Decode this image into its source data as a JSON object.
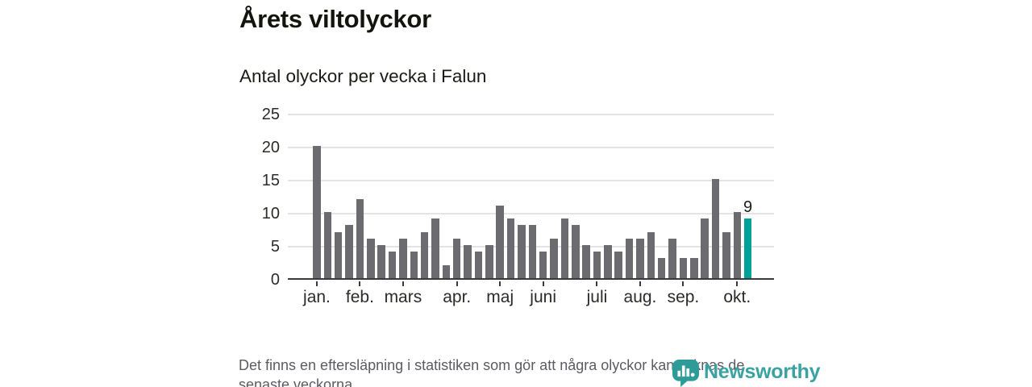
{
  "header": {
    "title": "Årets viltolyckor",
    "subtitle": "Antal olyckor per vecka i Falun"
  },
  "chart_data": {
    "type": "bar",
    "title": "Årets viltolyckor",
    "subtitle": "Antal olyckor per vecka i Falun",
    "x_unit": "vecka (week number)",
    "weeks": [
      1,
      2,
      3,
      4,
      5,
      6,
      7,
      8,
      9,
      10,
      11,
      12,
      13,
      14,
      15,
      16,
      17,
      18,
      19,
      20,
      21,
      22,
      23,
      24,
      25,
      26,
      27,
      28,
      29,
      30,
      31,
      32,
      33,
      34,
      35,
      36,
      37,
      38,
      39,
      40,
      41
    ],
    "values": [
      20,
      10,
      7,
      8,
      12,
      6,
      5,
      4,
      6,
      4,
      7,
      9,
      2,
      6,
      5,
      4,
      5,
      11,
      9,
      8,
      8,
      4,
      6,
      9,
      8,
      5,
      4,
      5,
      4,
      6,
      6,
      7,
      3,
      6,
      3,
      3,
      9,
      15,
      7,
      10,
      9
    ],
    "last_bar_highlighted": true,
    "last_value_label": "9",
    "ylim": [
      0,
      25
    ],
    "yticks": [
      0,
      5,
      10,
      15,
      20,
      25
    ],
    "grid": true,
    "month_ticks": [
      {
        "label": "jan.",
        "week": 1
      },
      {
        "label": "feb.",
        "week": 5
      },
      {
        "label": "mars",
        "week": 9
      },
      {
        "label": "apr.",
        "week": 14
      },
      {
        "label": "maj",
        "week": 18
      },
      {
        "label": "juni",
        "week": 22
      },
      {
        "label": "juli",
        "week": 27
      },
      {
        "label": "aug.",
        "week": 31
      },
      {
        "label": "sep.",
        "week": 35
      },
      {
        "label": "okt.",
        "week": 40
      }
    ],
    "colors": {
      "bar": "#6b6b70",
      "highlight": "#00a09a",
      "axis": "#3a3a3c",
      "grid": "#e4e4e4"
    }
  },
  "footer": {
    "lines": [
      "Det finns en eftersläpning i statistiken som gör att några olyckor kan saknas de",
      "senaste veckorna."
    ]
  },
  "logo": {
    "text": "Newsworthy",
    "color": "#3aa2a0",
    "icon": "newsworthy-bubble-barchart-icon"
  }
}
